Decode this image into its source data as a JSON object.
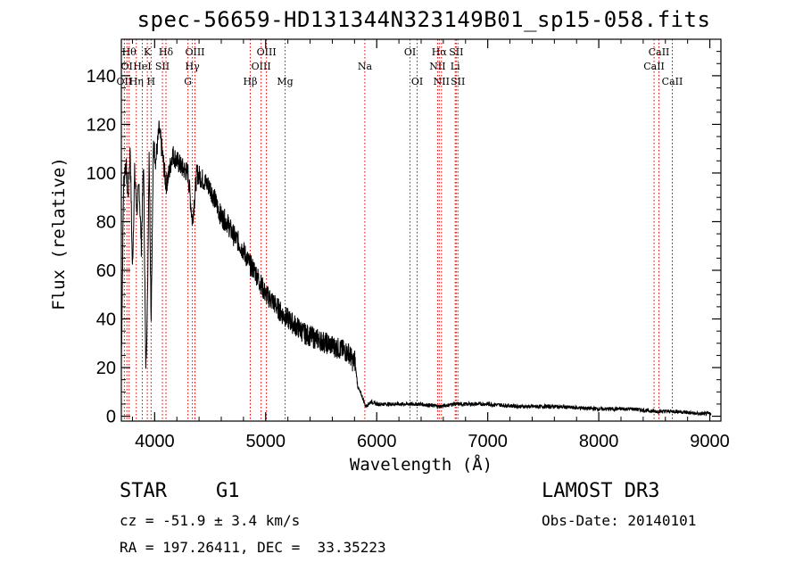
{
  "chart_data": {
    "type": "line",
    "title": "spec-56659-HD131344N323149B01_sp15-058.fits",
    "xlabel": "Wavelength (Å)",
    "ylabel": "Flux (relative)",
    "xlim": [
      3700,
      9100
    ],
    "ylim": [
      -2,
      155
    ],
    "x_ticks": [
      4000,
      5000,
      6000,
      7000,
      8000,
      9000
    ],
    "x_tick_labels": [
      "4000",
      "5000",
      "6000",
      "7000",
      "8000",
      "9000"
    ],
    "y_ticks": [
      0,
      20,
      40,
      60,
      80,
      100,
      120,
      140
    ],
    "y_tick_labels": [
      "0",
      "20",
      "40",
      "60",
      "80",
      "100",
      "120",
      "140"
    ],
    "series": [
      {
        "name": "spectrum",
        "x": [
          3700,
          3720,
          3740,
          3760,
          3780,
          3800,
          3820,
          3840,
          3860,
          3880,
          3900,
          3920,
          3935,
          3950,
          3968,
          3990,
          4010,
          4040,
          4070,
          4102,
          4130,
          4160,
          4200,
          4250,
          4300,
          4340,
          4380,
          4420,
          4460,
          4500,
          4550,
          4600,
          4650,
          4700,
          4750,
          4800,
          4861,
          4900,
          4950,
          5000,
          5050,
          5100,
          5150,
          5200,
          5250,
          5300,
          5350,
          5400,
          5450,
          5500,
          5550,
          5600,
          5650,
          5700,
          5750,
          5790,
          5800,
          5830,
          5870,
          5900,
          5950,
          6000,
          6200,
          6400,
          6563,
          6700,
          7000,
          7300,
          7600,
          8000,
          8300,
          8500,
          8700,
          8900,
          9000
        ],
        "values": [
          20,
          95,
          105,
          90,
          110,
          60,
          100,
          85,
          95,
          70,
          105,
          20,
          45,
          110,
          40,
          112,
          105,
          118,
          108,
          95,
          100,
          108,
          105,
          102,
          100,
          80,
          100,
          98,
          96,
          94,
          88,
          82,
          80,
          75,
          72,
          68,
          62,
          60,
          55,
          50,
          48,
          45,
          42,
          40,
          38,
          36,
          34,
          33,
          32,
          31,
          30,
          29,
          28,
          27,
          26,
          22,
          24,
          12,
          8,
          4,
          6,
          5,
          5,
          5,
          4,
          5,
          5,
          4,
          4,
          3,
          3,
          2,
          2,
          1,
          1
        ]
      }
    ],
    "lines": [
      {
        "wave": 3727,
        "label": "OII",
        "row": 3
      },
      {
        "wave": 3750,
        "label": "OI",
        "row": 2
      },
      {
        "wave": 3770,
        "label": "Hθ",
        "row": 1
      },
      {
        "wave": 3835,
        "label": "Hη",
        "row": 3
      },
      {
        "wave": 3889,
        "label": "HeI",
        "row": 2
      },
      {
        "wave": 3934,
        "label": "K",
        "row": 1
      },
      {
        "wave": 3968,
        "label": "H",
        "row": 3
      },
      {
        "wave": 4070,
        "label": "SII",
        "row": 2
      },
      {
        "wave": 4102,
        "label": "Hδ",
        "row": 1
      },
      {
        "wave": 4300,
        "label": "G",
        "row": 3
      },
      {
        "wave": 4340,
        "label": "Hγ",
        "row": 2
      },
      {
        "wave": 4363,
        "label": "OIII",
        "row": 1
      },
      {
        "wave": 4861,
        "label": "Hβ",
        "row": 3
      },
      {
        "wave": 4959,
        "label": "OIII",
        "row": 2
      },
      {
        "wave": 5007,
        "label": "OIII",
        "row": 1
      },
      {
        "wave": 5175,
        "label": "Mg",
        "row": 3
      },
      {
        "wave": 5893,
        "label": "Na",
        "row": 2
      },
      {
        "wave": 6300,
        "label": "OI",
        "row": 1
      },
      {
        "wave": 6364,
        "label": "OI",
        "row": 3
      },
      {
        "wave": 6548,
        "label": "NII",
        "row": 2
      },
      {
        "wave": 6563,
        "label": "Hα",
        "row": 1
      },
      {
        "wave": 6583,
        "label": "NII",
        "row": 3
      },
      {
        "wave": 6707,
        "label": "Li",
        "row": 2
      },
      {
        "wave": 6716,
        "label": "SII",
        "row": 1
      },
      {
        "wave": 6731,
        "label": "SII",
        "row": 3
      },
      {
        "wave": 8498,
        "label": "CaII",
        "row": 2
      },
      {
        "wave": 8542,
        "label": "CaII",
        "row": 1
      },
      {
        "wave": 8662,
        "label": "CaII",
        "row": 3
      }
    ]
  },
  "info": {
    "object_class": "STAR",
    "subclass": "G1",
    "cz": "cz = -51.9 ± 3.4 km/s",
    "radec": "RA = 197.26411, DEC =  33.35223",
    "survey": "LAMOST DR3",
    "obs_date": "Obs-Date: 20140101"
  },
  "colors": {
    "axis": "#000000",
    "spectrum": "#000000",
    "line_marker": "#cc0000"
  }
}
